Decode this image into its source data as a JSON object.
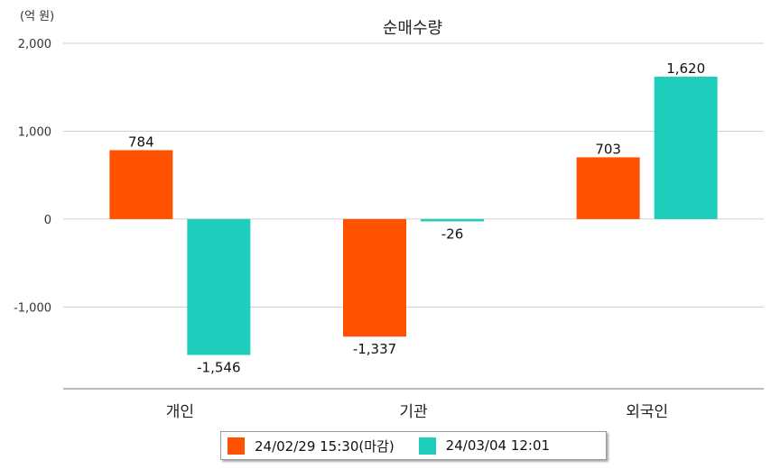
{
  "chart_data": {
    "type": "bar",
    "title": "순매수량",
    "unit_label": "(억 원)",
    "categories": [
      "개인",
      "기관",
      "외국인"
    ],
    "series": [
      {
        "name": "24/02/29 15:30(마감)",
        "color": "#FF5200",
        "values": [
          784,
          -1337,
          703
        ],
        "labels": [
          "784",
          "-1,337",
          "703"
        ]
      },
      {
        "name": "24/03/04 12:01",
        "color": "#1ECDBB",
        "values": [
          -1546,
          -26,
          1620
        ],
        "labels": [
          "-1,546",
          "-26",
          "1,620"
        ]
      }
    ],
    "yticks": [
      2000,
      1000,
      0,
      -1000
    ],
    "ytick_labels": [
      "2,000",
      "1,000",
      "0",
      "-1,000"
    ],
    "ylim": [
      -1930,
      2000
    ],
    "grid": true,
    "legend_position": "bottom"
  }
}
